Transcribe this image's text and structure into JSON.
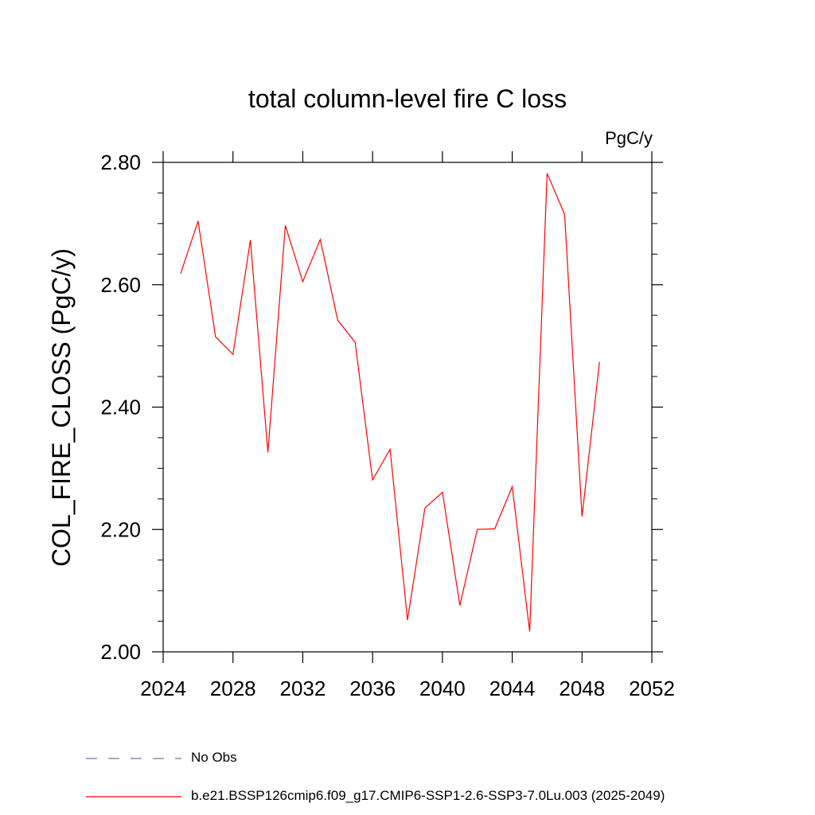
{
  "chart_data": {
    "type": "line",
    "title": "total column-level fire C loss",
    "units": "PgC/y",
    "ylabel": "COL_FIRE_CLOSS  (PgC/y)",
    "xlabel": "",
    "xlim": [
      2024,
      2052
    ],
    "ylim": [
      2.0,
      2.8
    ],
    "x_ticks": [
      2024,
      2028,
      2032,
      2036,
      2040,
      2044,
      2048,
      2052
    ],
    "y_ticks": [
      "2.00",
      "2.20",
      "2.40",
      "2.60",
      "2.80"
    ],
    "grid": false,
    "legend_position": "bottom",
    "series": [
      {
        "name": "No Obs",
        "color": "#7a6fc0",
        "style": "dashed",
        "x": [],
        "values": []
      },
      {
        "name": "b.e21.BSSP126cmip6.f09_g17.CMIP6-SSP1-2.6-SSP3-7.0Lu.003 (2025-2049)",
        "color": "#ff0000",
        "style": "solid",
        "x": [
          2025,
          2026,
          2027,
          2028,
          2029,
          2030,
          2031,
          2032,
          2033,
          2034,
          2035,
          2036,
          2037,
          2038,
          2039,
          2040,
          2041,
          2042,
          2043,
          2044,
          2045,
          2046,
          2047,
          2048,
          2049
        ],
        "values": [
          2.618,
          2.704,
          2.515,
          2.486,
          2.673,
          2.326,
          2.697,
          2.605,
          2.674,
          2.542,
          2.506,
          2.281,
          2.331,
          2.052,
          2.235,
          2.261,
          2.076,
          2.2,
          2.201,
          2.27,
          2.033,
          2.782,
          2.715,
          2.221,
          2.474
        ]
      }
    ]
  }
}
